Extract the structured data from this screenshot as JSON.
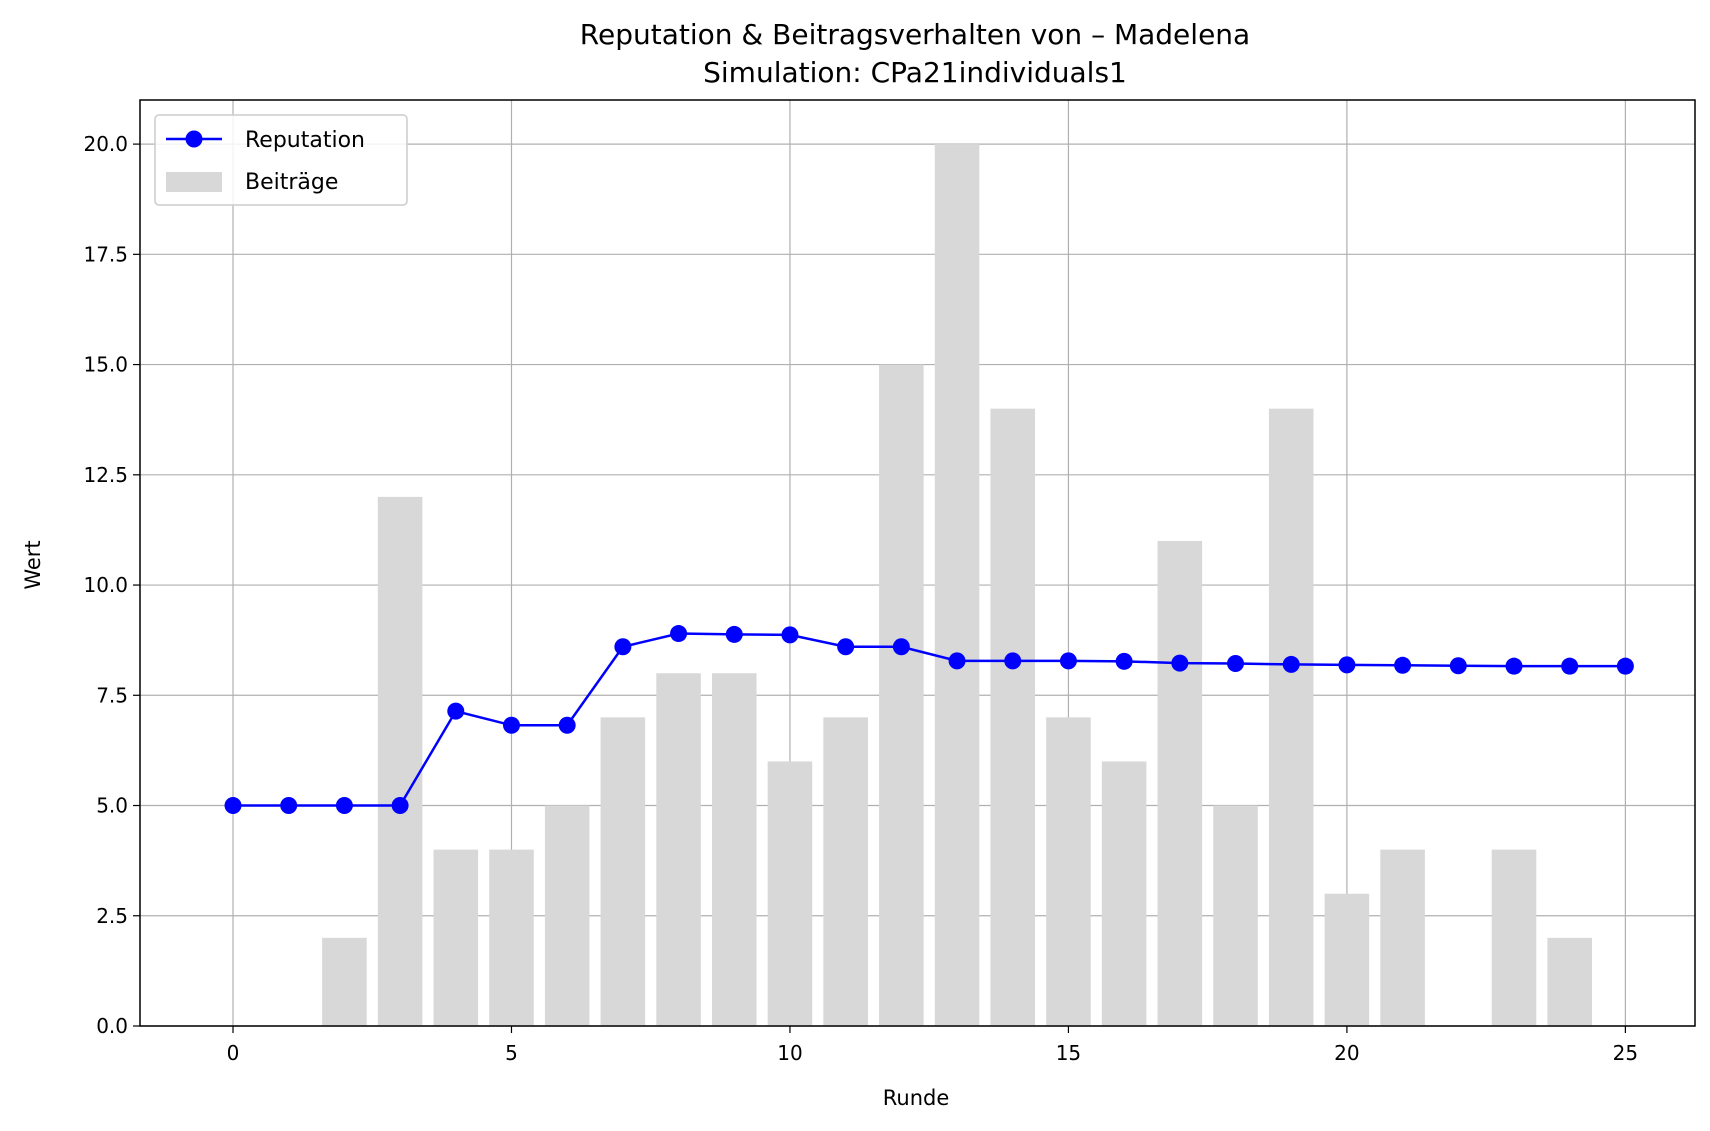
{
  "chart_data": {
    "type": "bar",
    "title": "Reputation & Beitragsverhalten von – Madelena",
    "subtitle": "Simulation: CPa21individuals1",
    "xlabel": "Runde",
    "ylabel": "Wert",
    "xlim": [
      -1.67,
      26.25
    ],
    "ylim": [
      0,
      21
    ],
    "xticks": [
      0,
      5,
      10,
      15,
      20,
      25
    ],
    "xtick_labels": [
      "0",
      "5",
      "10",
      "15",
      "20",
      "25"
    ],
    "yticks": [
      0,
      2.5,
      5,
      7.5,
      10,
      12.5,
      15,
      17.5,
      20
    ],
    "ytick_labels": [
      "0.0",
      "2.5",
      "5.0",
      "7.5",
      "10.0",
      "12.5",
      "15.0",
      "17.5",
      "20.0"
    ],
    "grid": true,
    "legend_position": "top-left",
    "x": [
      0,
      1,
      2,
      3,
      4,
      5,
      6,
      7,
      8,
      9,
      10,
      11,
      12,
      13,
      14,
      15,
      16,
      17,
      18,
      19,
      20,
      21,
      22,
      23,
      24,
      25
    ],
    "series": [
      {
        "name": "Reputation",
        "type": "line",
        "color": "#0000ff",
        "marker": "circle",
        "values": [
          5.0,
          5.0,
          5.0,
          5.0,
          7.14,
          6.82,
          6.82,
          8.6,
          8.9,
          8.88,
          8.87,
          8.6,
          8.6,
          8.28,
          8.28,
          8.28,
          8.27,
          8.23,
          8.22,
          8.2,
          8.19,
          8.18,
          8.17,
          8.16,
          8.16,
          8.16
        ]
      },
      {
        "name": "Beiträge",
        "type": "bar",
        "color": "#d8d8d8",
        "values": [
          0,
          0,
          2,
          12,
          4,
          4,
          5,
          7,
          8,
          8,
          6,
          7,
          15,
          20,
          14,
          7,
          6,
          11,
          5,
          14,
          3,
          4,
          0,
          4,
          2,
          0
        ]
      }
    ]
  }
}
